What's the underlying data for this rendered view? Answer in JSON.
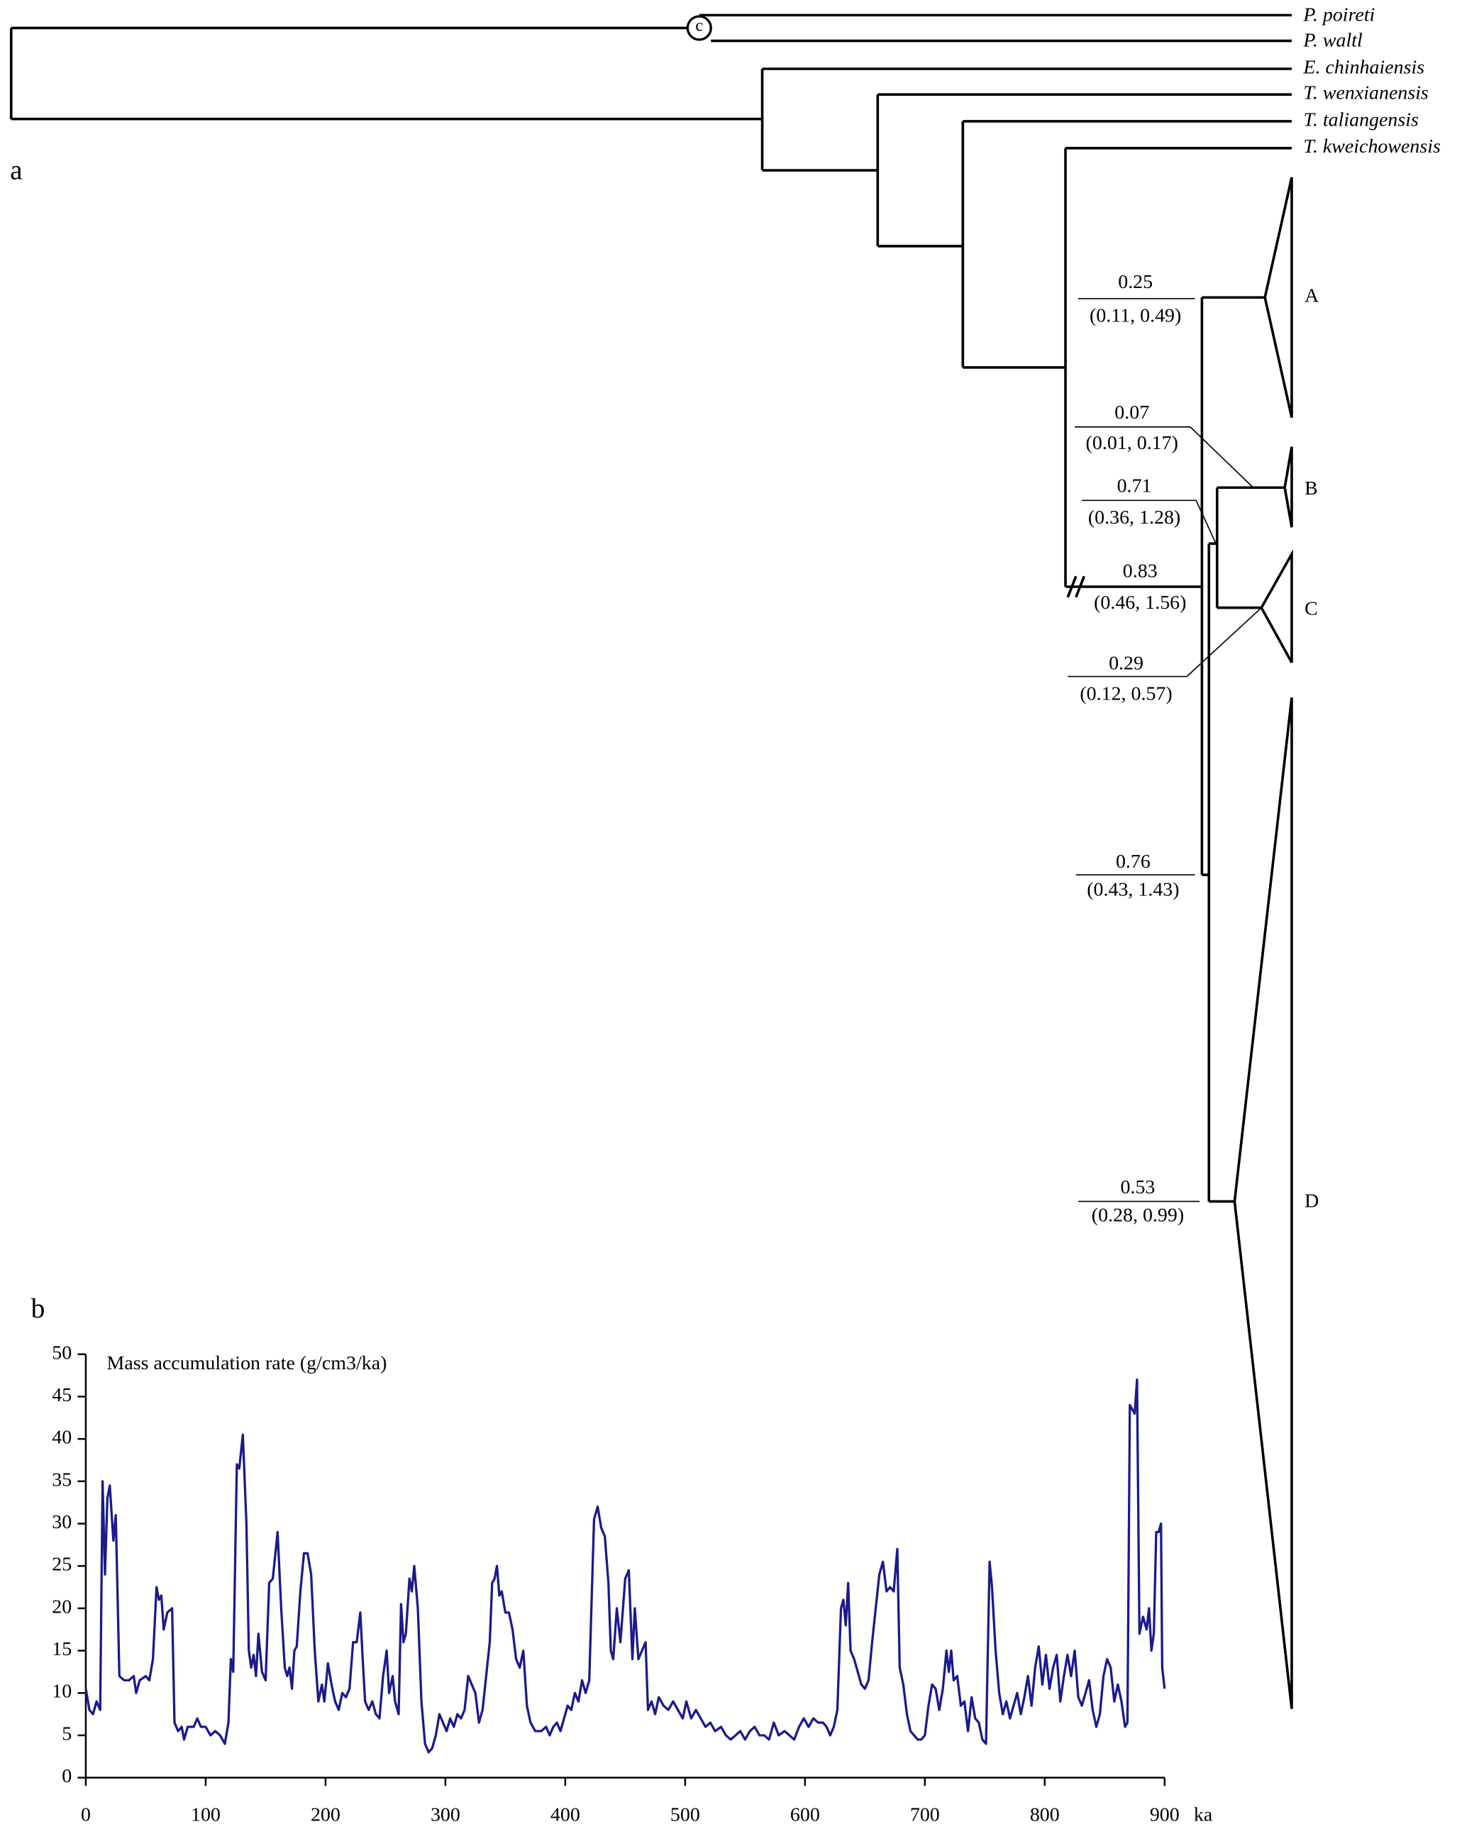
{
  "tree": {
    "panel_label": "a",
    "calibration": "c",
    "taxa": [
      "P. poireti",
      "P. waltl",
      "E. chinhaiensis",
      "T. wenxianensis",
      "T. taliangensis",
      "T. kweichowensis"
    ],
    "clades": [
      "A",
      "B",
      "C",
      "D"
    ],
    "node_ages": [
      {
        "age": "0.25",
        "hpd": "(0.11, 0.49)"
      },
      {
        "age": "0.07",
        "hpd": "(0.01, 0.17)"
      },
      {
        "age": "0.71",
        "hpd": "(0.36, 1.28)"
      },
      {
        "age": "0.83",
        "hpd": "(0.46, 1.56)"
      },
      {
        "age": "0.29",
        "hpd": "(0.12, 0.57)"
      },
      {
        "age": "0.76",
        "hpd": "(0.43, 1.43)"
      },
      {
        "age": "0.53",
        "hpd": "(0.28, 0.99)"
      }
    ]
  },
  "chart_data": {
    "type": "line",
    "panel_label": "b",
    "title": "Mass accumulation rate (g/cm3/ka)",
    "x_label": "ka",
    "xlim": [
      0,
      900
    ],
    "ylim": [
      0,
      50
    ],
    "xticks": [
      0,
      100,
      200,
      300,
      400,
      500,
      600,
      700,
      800,
      900
    ],
    "yticks": [
      0,
      5,
      10,
      15,
      20,
      25,
      30,
      35,
      40,
      45,
      50
    ],
    "series": [
      {
        "color": "#1a1a8c",
        "x": [
          0,
          3,
          6,
          9,
          12,
          14,
          16,
          18,
          20,
          23,
          25,
          28,
          32,
          36,
          40,
          42,
          45,
          50,
          53,
          56,
          59,
          61,
          63,
          65,
          68,
          72,
          74,
          77,
          80,
          82,
          85,
          90,
          93,
          96,
          100,
          104,
          108,
          112,
          116,
          119,
          121,
          123,
          126,
          128,
          131,
          134,
          136,
          138,
          140,
          142,
          144,
          147,
          150,
          153,
          156,
          160,
          163,
          166,
          168,
          170,
          172,
          174,
          176,
          179,
          182,
          185,
          188,
          191,
          194,
          197,
          199,
          202,
          205,
          208,
          211,
          214,
          217,
          220,
          223,
          226,
          229,
          231,
          233,
          236,
          239,
          242,
          245,
          248,
          251,
          253,
          256,
          258,
          261,
          263,
          265,
          267,
          270,
          272,
          274,
          277,
          280,
          283,
          286,
          289,
          292,
          295,
          298,
          301,
          304,
          307,
          310,
          313,
          316,
          319,
          322,
          325,
          328,
          331,
          334,
          337,
          339,
          341,
          343,
          345,
          347,
          350,
          353,
          356,
          359,
          362,
          365,
          368,
          371,
          375,
          380,
          384,
          387,
          390,
          393,
          396,
          399,
          402,
          405,
          408,
          411,
          414,
          417,
          420,
          424,
          427,
          430,
          433,
          436,
          438,
          440,
          443,
          446,
          450,
          453,
          456,
          458,
          461,
          464,
          467,
          469,
          472,
          475,
          478,
          482,
          486,
          490,
          494,
          498,
          501,
          505,
          509,
          513,
          517,
          521,
          525,
          530,
          534,
          538,
          542,
          546,
          550,
          554,
          558,
          562,
          566,
          570,
          574,
          578,
          583,
          587,
          591,
          595,
          599,
          603,
          607,
          611,
          615,
          618,
          621,
          624,
          627,
          630,
          632,
          634,
          636,
          638,
          641,
          644,
          647,
          650,
          653,
          656,
          659,
          662,
          665,
          668,
          671,
          674,
          677,
          679,
          682,
          685,
          688,
          691,
          694,
          697,
          700,
          703,
          706,
          709,
          712,
          715,
          718,
          720,
          722,
          724,
          727,
          730,
          733,
          736,
          739,
          742,
          745,
          748,
          751,
          754,
          756,
          759,
          762,
          765,
          768,
          771,
          774,
          777,
          780,
          783,
          786,
          789,
          792,
          795,
          798,
          801,
          804,
          807,
          810,
          813,
          816,
          819,
          822,
          825,
          828,
          831,
          834,
          837,
          840,
          843,
          846,
          849,
          852,
          855,
          858,
          861,
          864,
          867,
          869,
          871,
          873,
          875,
          877,
          879,
          882,
          885,
          887,
          889,
          891,
          893,
          895,
          897,
          898,
          900
        ],
        "values": [
          10.5,
          8,
          7.5,
          9,
          8,
          35,
          24,
          33,
          34.5,
          28,
          31,
          12,
          11.5,
          11.5,
          12,
          10,
          11.5,
          12,
          11.5,
          14,
          22.5,
          21,
          21.5,
          17.5,
          19.5,
          20,
          6.5,
          5.5,
          6,
          4.5,
          6,
          6,
          7,
          6,
          6,
          5,
          5.5,
          5,
          4,
          6.5,
          14,
          12.5,
          37,
          36.5,
          40.5,
          30,
          15,
          13,
          14.5,
          12,
          17,
          12.5,
          11.5,
          23,
          23.5,
          29,
          20,
          13,
          12,
          13,
          10.5,
          15,
          15.5,
          22,
          26.5,
          26.5,
          24,
          15,
          9,
          11,
          9,
          13.5,
          11,
          9,
          8,
          10,
          9.5,
          10.5,
          16,
          16,
          19.5,
          14,
          9,
          8,
          9,
          7.5,
          7,
          12,
          15,
          10,
          12,
          9,
          7.5,
          20.5,
          16,
          17,
          23.5,
          22,
          25,
          20,
          9,
          4,
          3,
          3.5,
          5,
          7.5,
          6.5,
          5.5,
          7,
          6,
          7.5,
          7,
          8,
          12,
          11,
          10,
          6.5,
          8,
          12,
          16,
          23,
          23.5,
          25,
          21.5,
          22,
          19.5,
          19.5,
          17.5,
          14,
          13,
          15,
          8.5,
          6.5,
          5.5,
          5.5,
          6,
          5,
          6,
          6.5,
          5.5,
          7,
          8.5,
          8,
          10,
          9,
          11.5,
          10,
          11.5,
          30.5,
          32,
          29.5,
          28.5,
          23,
          15,
          14,
          20,
          16,
          23.5,
          24.5,
          14,
          20,
          14,
          15,
          16,
          8,
          9,
          7.5,
          9.5,
          8.5,
          8,
          9,
          8,
          7,
          9,
          7,
          8,
          7,
          6,
          6.5,
          5.5,
          6,
          5,
          4.5,
          5,
          5.5,
          4.5,
          5.5,
          6,
          5,
          5,
          4.5,
          6.5,
          5,
          5.5,
          5,
          4.5,
          6,
          7,
          6,
          7,
          6.5,
          6.5,
          6,
          5,
          6,
          8,
          20,
          21,
          18,
          23,
          15,
          14,
          12.5,
          11,
          10.5,
          11.5,
          16,
          20,
          24,
          25.5,
          22,
          22.5,
          22,
          27,
          13,
          11,
          7.5,
          5.5,
          5,
          4.5,
          4.5,
          5,
          8.5,
          11,
          10.5,
          8,
          10.5,
          15,
          12.5,
          15,
          11.5,
          12,
          8.5,
          9,
          5.5,
          9.5,
          7,
          6.5,
          4.5,
          4,
          25.5,
          22.5,
          15,
          10,
          7.5,
          9,
          7,
          8.5,
          10,
          7.5,
          9.5,
          12,
          8.5,
          13,
          15.5,
          11,
          14.5,
          10.5,
          13,
          14.5,
          9,
          12,
          14.5,
          12,
          15,
          9.5,
          8.5,
          10,
          11.5,
          8,
          6,
          7.5,
          12,
          14,
          13,
          9,
          11,
          9,
          6,
          6.5,
          44,
          43.5,
          43,
          47,
          17,
          19,
          17.5,
          20,
          15,
          17,
          29,
          29,
          30,
          13,
          10.5
        ]
      }
    ]
  }
}
